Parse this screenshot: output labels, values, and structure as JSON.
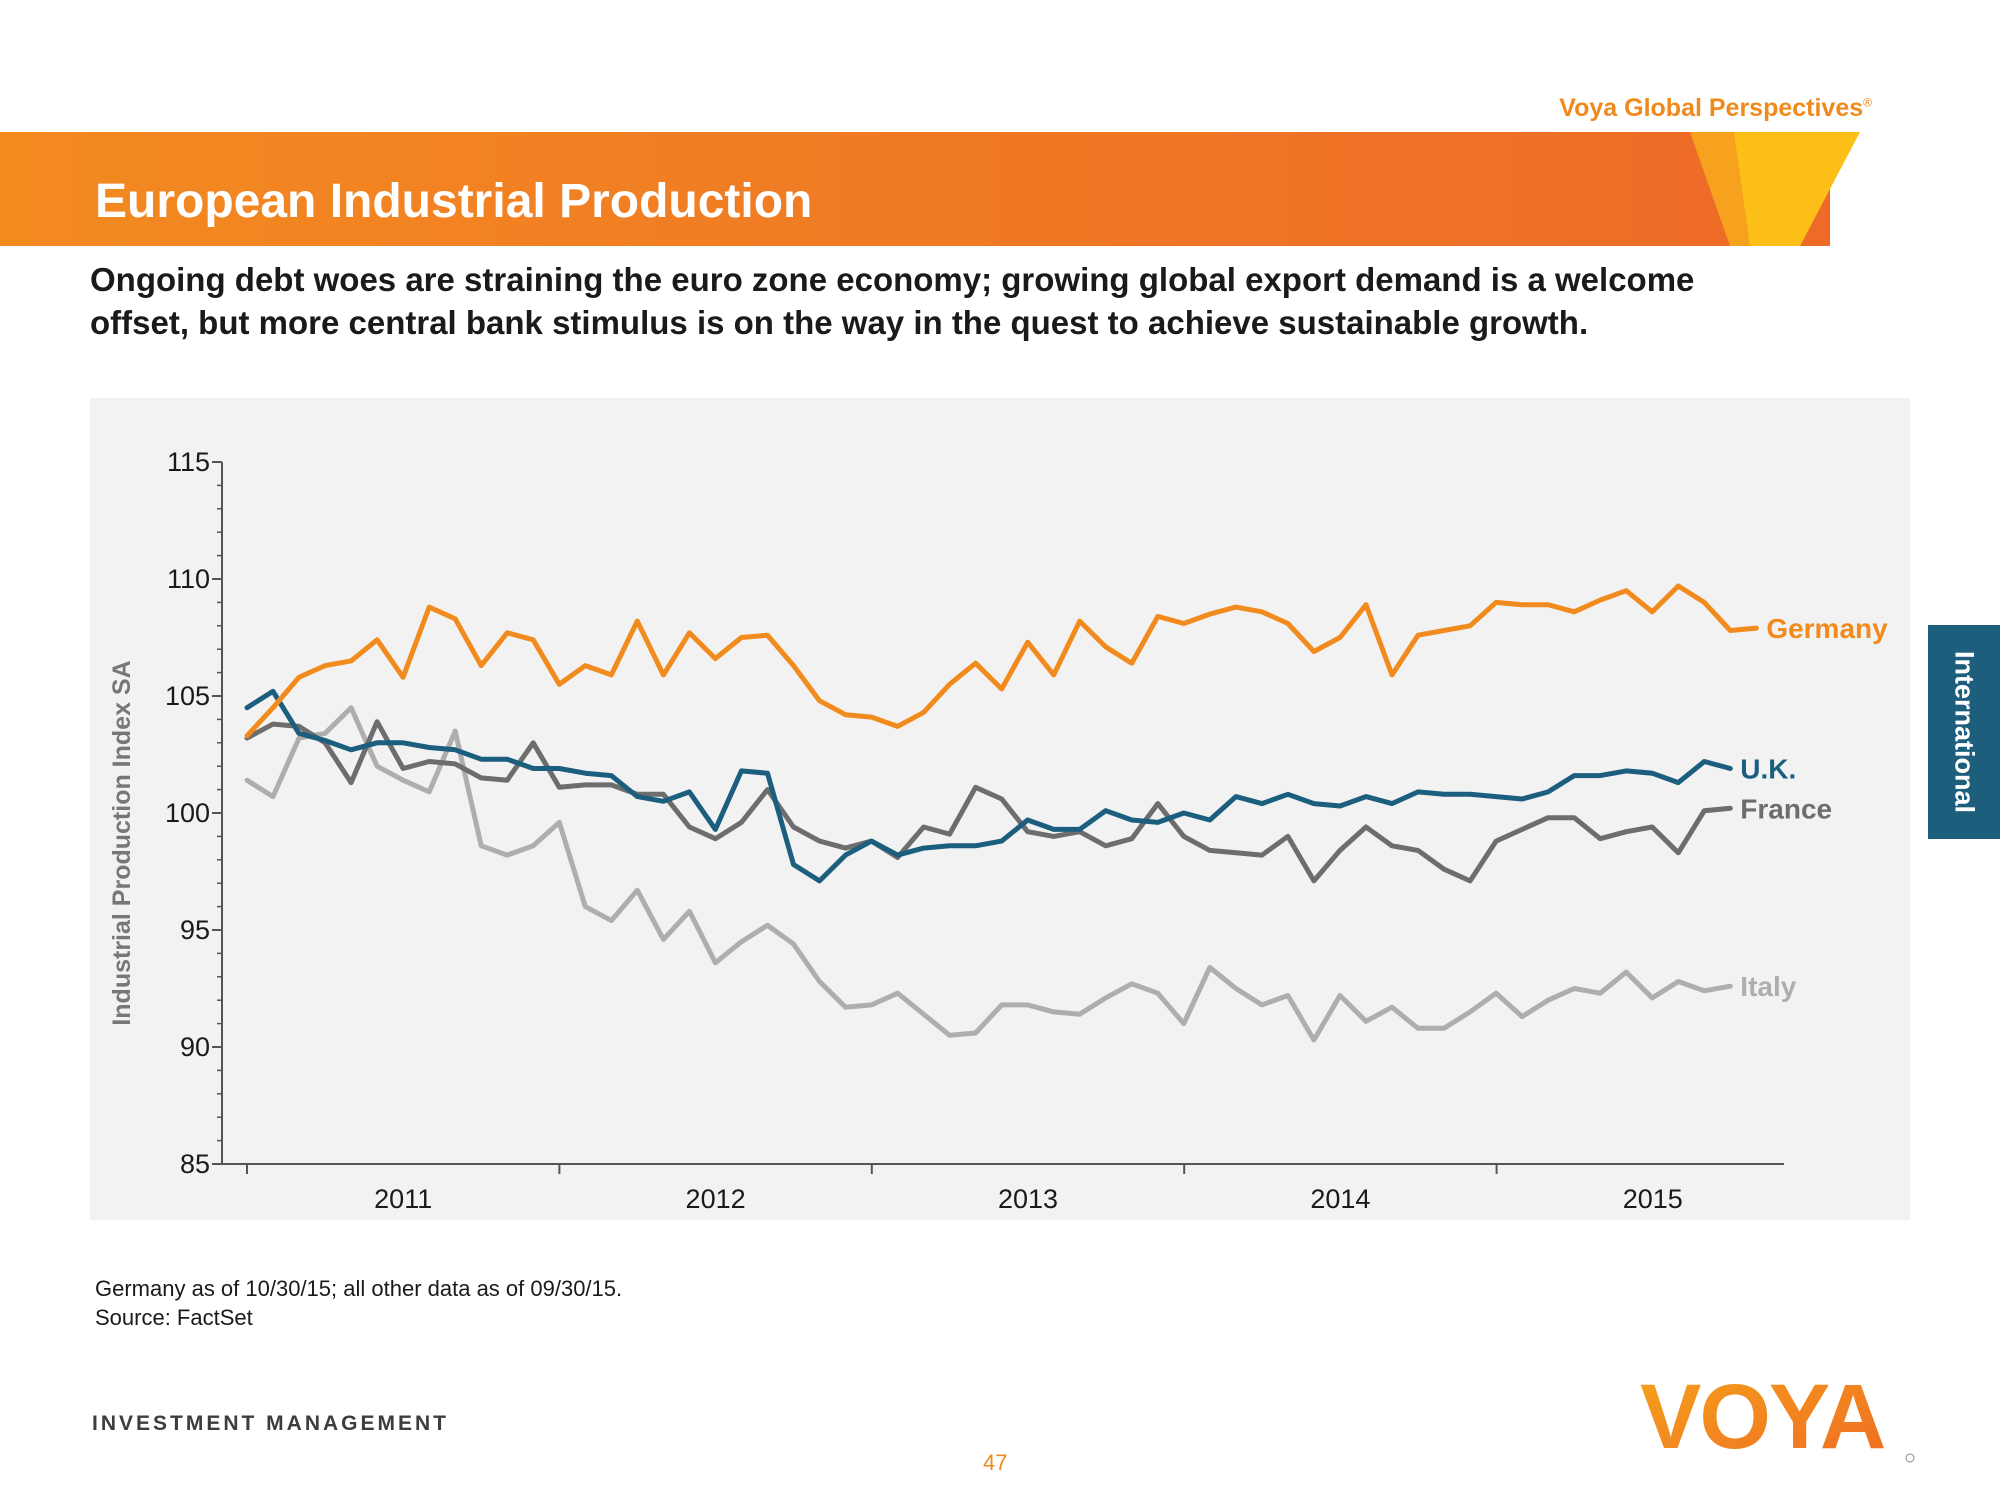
{
  "header": {
    "brand": "Voya Global Perspectives",
    "brand_mark": "®",
    "title": "European Industrial Production"
  },
  "subtitle": {
    "line1": "Ongoing debt woes are straining the euro zone economy; growing global export demand is a welcome",
    "line2": "offset, but more central bank stimulus is on the way in the quest to achieve sustainable growth."
  },
  "side_tab": {
    "label": "International"
  },
  "footnote": {
    "line1": "Germany as of 10/30/15; all other data as of 09/30/15.",
    "line2": "Source: FactSet"
  },
  "footer": {
    "company": "INVESTMENT MANAGEMENT",
    "page_number": "47",
    "logo_text": "VOYA"
  },
  "colors": {
    "orange": "#f08a1c",
    "germany": "#f28b1e",
    "uk": "#1b5e7e",
    "france": "#6d6d6d",
    "italy": "#aeaeae",
    "axis": "#555555"
  },
  "chart_data": {
    "type": "line",
    "title": "",
    "xlabel": "",
    "ylabel": "Industrial Production Index SA",
    "ylim": [
      85,
      115
    ],
    "yticks": [
      85,
      90,
      95,
      100,
      105,
      110,
      115
    ],
    "x_start": 2010.5,
    "x_step": 0.0833,
    "x_axis_range": [
      2010.42,
      2015.42
    ],
    "year_ticks": [
      2011,
      2012,
      2013,
      2014
    ],
    "year_labels": [
      {
        "label": "2011",
        "value": 2011
      },
      {
        "label": "2012",
        "value": 2012
      },
      {
        "label": "2013",
        "value": 2013
      },
      {
        "label": "2014",
        "value": 2014
      },
      {
        "label": "2015",
        "value": 2015
      }
    ],
    "series": [
      {
        "name": "Germany",
        "color": "#f28b1e",
        "values": [
          103.3,
          104.5,
          105.8,
          106.3,
          106.5,
          107.4,
          105.8,
          108.8,
          108.3,
          106.3,
          107.7,
          107.4,
          105.5,
          106.3,
          105.9,
          108.2,
          105.9,
          107.7,
          106.6,
          107.5,
          107.6,
          106.3,
          104.8,
          104.2,
          104.1,
          103.7,
          104.3,
          105.5,
          106.4,
          105.3,
          107.3,
          105.9,
          108.2,
          107.1,
          106.4,
          108.4,
          108.1,
          108.5,
          108.8,
          108.6,
          108.1,
          106.9,
          107.5,
          108.9,
          105.9,
          107.6,
          107.8,
          108.0,
          109.0,
          108.9,
          108.9,
          108.6,
          109.1,
          109.5,
          108.6,
          109.7,
          109.0,
          107.8,
          107.9
        ]
      },
      {
        "name": "U.K.",
        "color": "#1b5e7e",
        "values": [
          104.5,
          105.2,
          103.4,
          103.1,
          102.7,
          103.0,
          103.0,
          102.8,
          102.7,
          102.3,
          102.3,
          101.9,
          101.9,
          101.7,
          101.6,
          100.7,
          100.5,
          100.9,
          99.3,
          101.8,
          101.7,
          97.8,
          97.1,
          98.2,
          98.8,
          98.2,
          98.5,
          98.6,
          98.6,
          98.8,
          99.7,
          99.3,
          99.3,
          100.1,
          99.7,
          99.6,
          100.0,
          99.7,
          100.7,
          100.4,
          100.8,
          100.4,
          100.3,
          100.7,
          100.4,
          100.9,
          100.8,
          100.8,
          100.7,
          100.6,
          100.9,
          101.6,
          101.6,
          101.8,
          101.7,
          101.3,
          102.2,
          101.9
        ]
      },
      {
        "name": "France",
        "color": "#6d6d6d",
        "values": [
          103.2,
          103.8,
          103.7,
          103.0,
          101.3,
          103.9,
          101.9,
          102.2,
          102.1,
          101.5,
          101.4,
          103.0,
          101.1,
          101.2,
          101.2,
          100.8,
          100.8,
          99.4,
          98.9,
          99.6,
          101.0,
          99.4,
          98.8,
          98.5,
          98.8,
          98.1,
          99.4,
          99.1,
          101.1,
          100.6,
          99.2,
          99.0,
          99.2,
          98.6,
          98.9,
          100.4,
          99.0,
          98.4,
          98.3,
          98.2,
          99.0,
          97.1,
          98.4,
          99.4,
          98.6,
          98.4,
          97.6,
          97.1,
          98.8,
          99.3,
          99.8,
          99.8,
          98.9,
          99.2,
          99.4,
          98.3,
          100.1,
          100.2
        ]
      },
      {
        "name": "Italy",
        "color": "#aeaeae",
        "values": [
          101.4,
          100.7,
          103.2,
          103.4,
          104.5,
          102.0,
          101.4,
          100.9,
          103.5,
          98.6,
          98.2,
          98.6,
          99.6,
          96.0,
          95.4,
          96.7,
          94.6,
          95.8,
          93.6,
          94.5,
          95.2,
          94.4,
          92.8,
          91.7,
          91.8,
          92.3,
          91.4,
          90.5,
          90.6,
          91.8,
          91.8,
          91.5,
          91.4,
          92.1,
          92.7,
          92.3,
          91.0,
          93.4,
          92.5,
          91.8,
          92.2,
          90.3,
          92.2,
          91.1,
          91.7,
          90.8,
          90.8,
          91.5,
          92.3,
          91.3,
          92.0,
          92.5,
          92.3,
          93.2,
          92.1,
          92.8,
          92.4,
          92.6
        ]
      }
    ]
  }
}
